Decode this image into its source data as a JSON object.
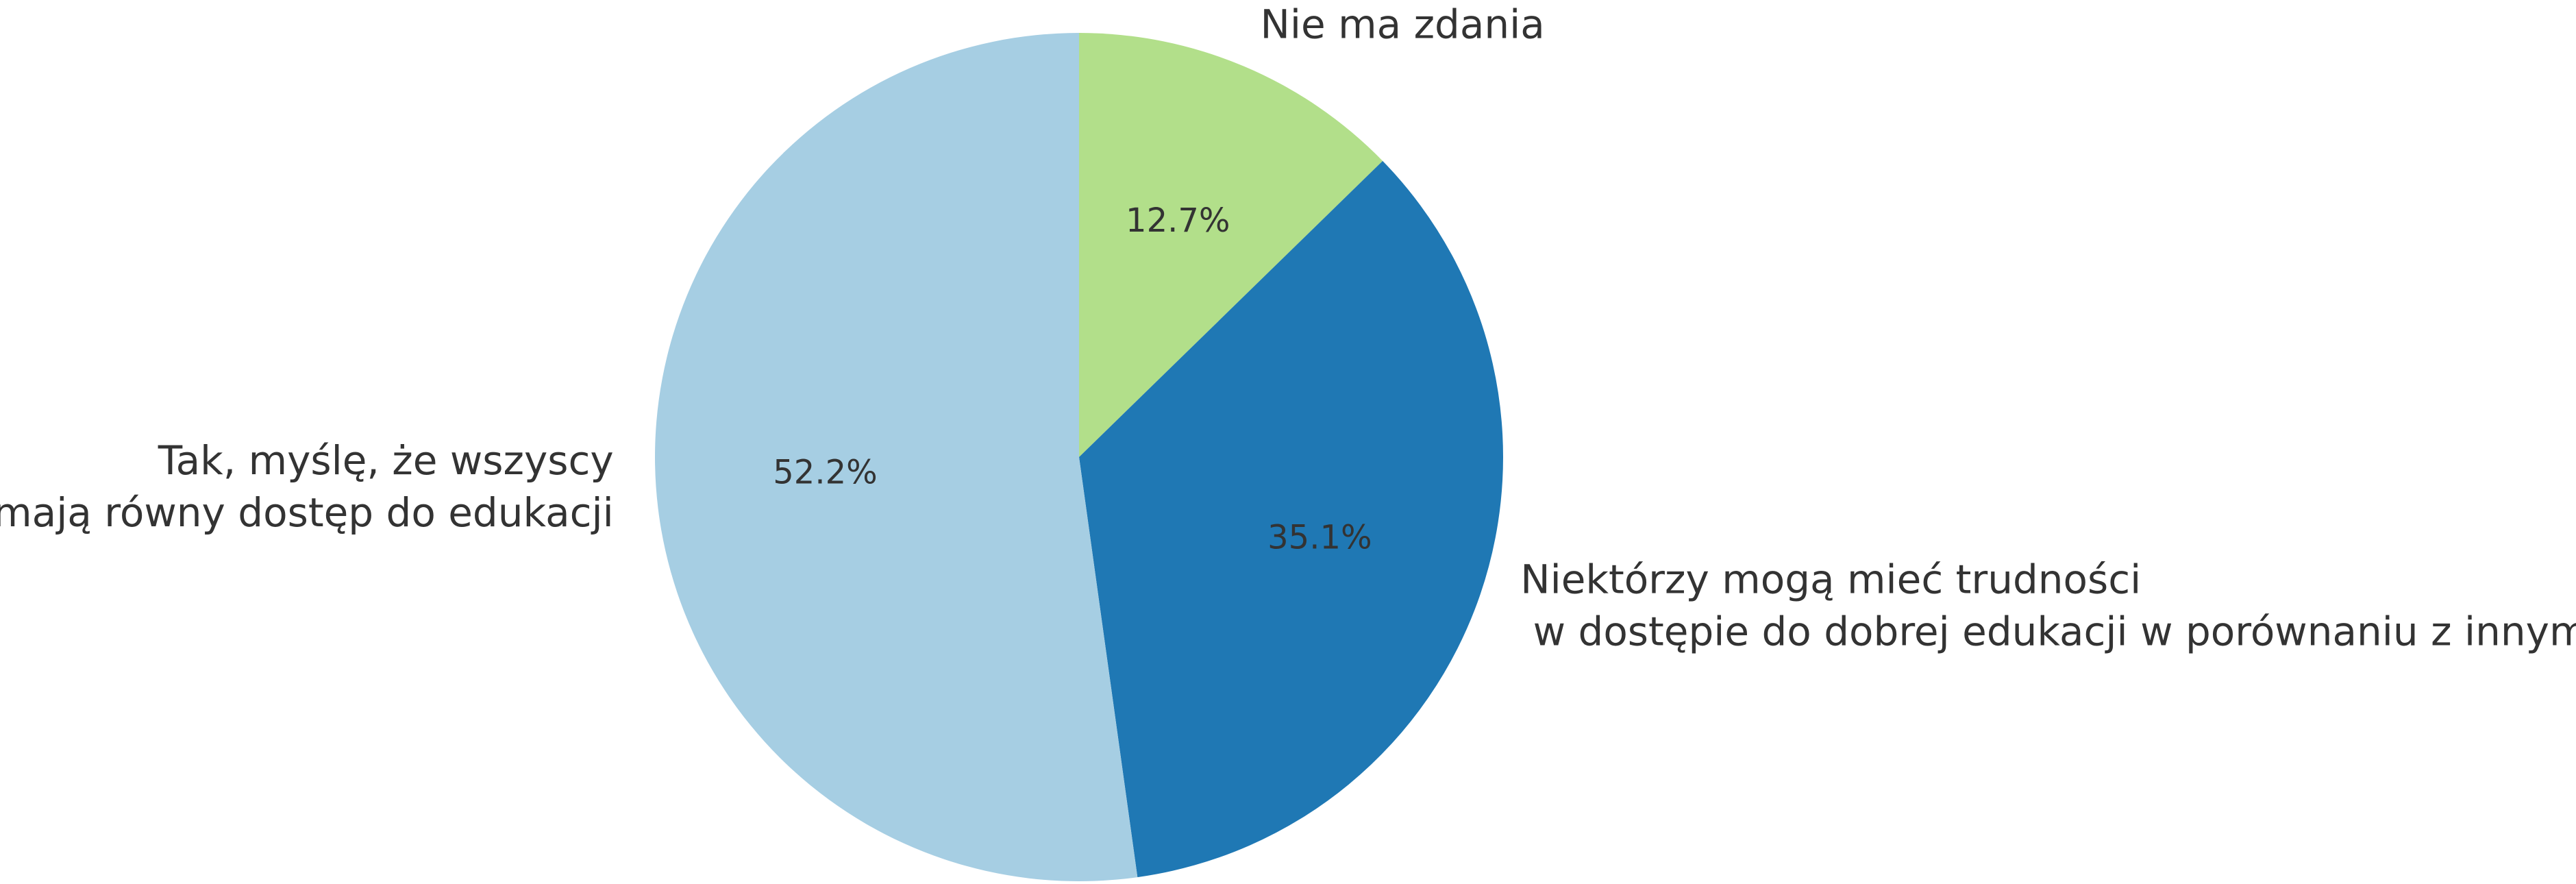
{
  "chart_data": {
    "type": "pie",
    "categories": [
      "Nie ma zdania",
      "Niektórzy mogą mieć trudności\n w dostępie do dobrej edukacji w porównaniu z innymi",
      " Tak, myślę, że wszyscy\nmają równy dostęp do edukacji"
    ],
    "values": [
      12.7,
      35.1,
      52.2
    ],
    "value_labels": [
      "12.7%",
      "35.1%",
      "52.2%"
    ],
    "colors": [
      "#b2df8a",
      "#1f78b4",
      "#a6cee3"
    ],
    "startangle": 90,
    "counterclock": false
  }
}
